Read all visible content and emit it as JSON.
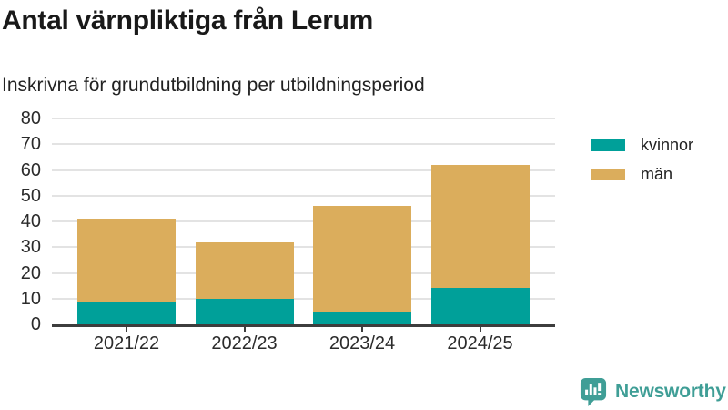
{
  "title": "Antal värnpliktiga från Lerum",
  "subtitle": "Inskrivna för grundutbildning per utbildningsperiod",
  "chart_data": {
    "type": "bar",
    "stacked": true,
    "categories": [
      "2021/22",
      "2022/23",
      "2023/24",
      "2024/25"
    ],
    "series": [
      {
        "name": "kvinnor",
        "color": "#00a099",
        "values": [
          9,
          10,
          5,
          14
        ]
      },
      {
        "name": "män",
        "color": "#dbad5c",
        "values": [
          32,
          22,
          41,
          48
        ]
      }
    ],
    "totals": [
      41,
      32,
      46,
      62
    ],
    "ylabel": "",
    "xlabel": "",
    "ylim": [
      0,
      80
    ],
    "yticks": [
      0,
      10,
      20,
      30,
      40,
      50,
      60,
      70,
      80
    ],
    "grid": true,
    "legend_position": "right-top"
  },
  "legend": {
    "items": [
      {
        "label": "kvinnor",
        "color": "#00a099"
      },
      {
        "label": "män",
        "color": "#dbad5c"
      }
    ]
  },
  "branding": {
    "logo_text": "Newsworthy",
    "logo_icon": "bar-chart-speech-bubble-icon",
    "logo_color": "#3f9e96"
  },
  "colors": {
    "kvinnor": "#00a099",
    "man": "#dbad5c",
    "grid": "#e3e3e3",
    "axis": "#3d3d3d",
    "text": "#2b2b2b",
    "title": "#191919"
  }
}
